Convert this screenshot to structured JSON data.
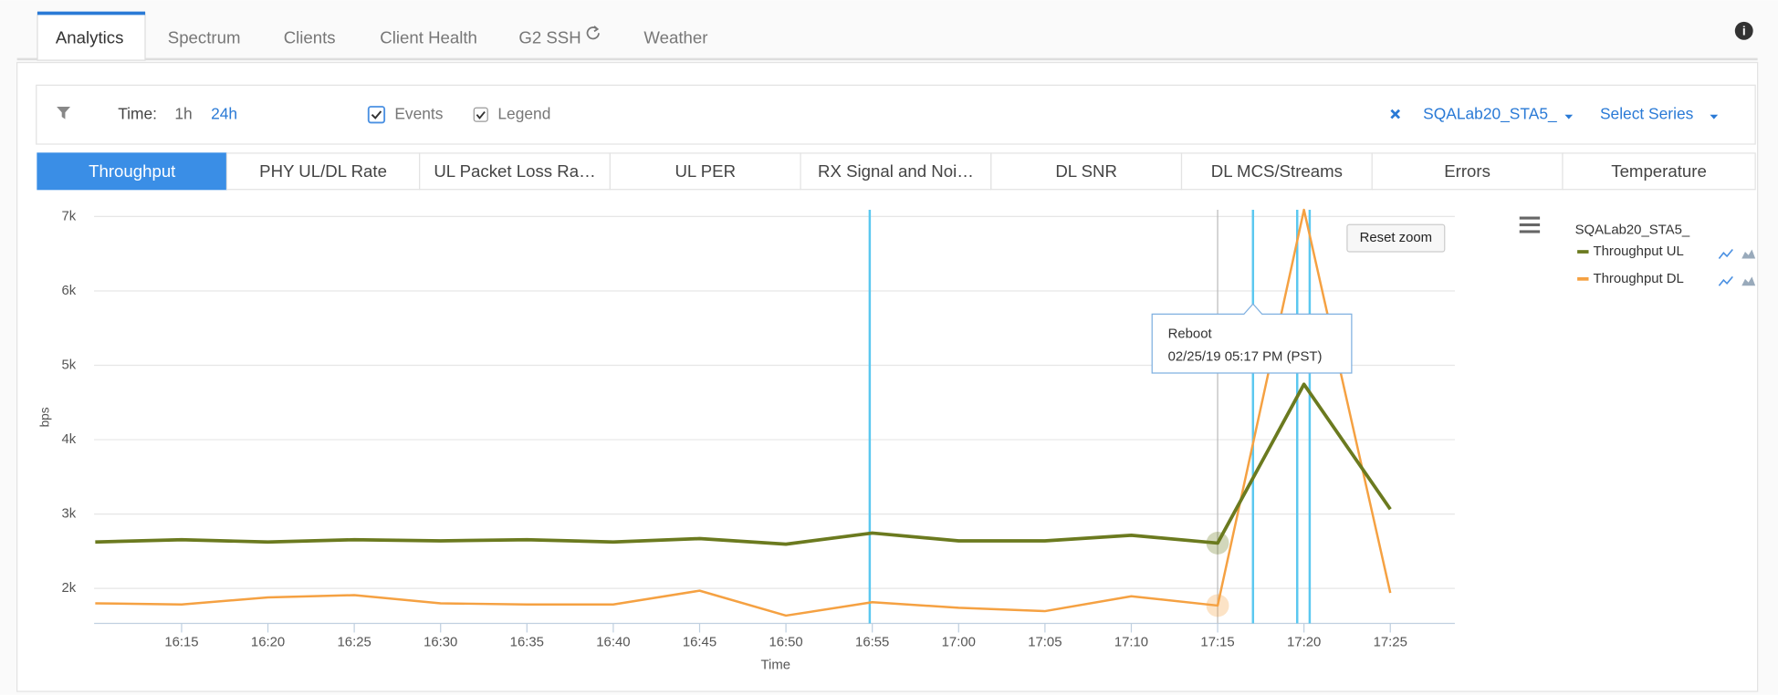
{
  "tabs": {
    "items": [
      "Analytics",
      "Spectrum",
      "Clients",
      "Client Health",
      "G2 SSH",
      "Weather"
    ],
    "active": 0
  },
  "toolbar": {
    "time_label": "Time:",
    "time_options": [
      "1h",
      "24h"
    ],
    "events": "Events",
    "legend": "Legend",
    "series_chip": "SQALab20_STA5_",
    "select_series": "Select Series"
  },
  "metric_tabs": {
    "items": [
      "Throughput",
      "PHY UL/DL Rate",
      "UL Packet Loss Ra…",
      "UL PER",
      "RX Signal and Noi…",
      "DL SNR",
      "DL MCS/Streams",
      "Errors",
      "Temperature"
    ],
    "active": 0
  },
  "chart_data": {
    "type": "line",
    "ylabel": "bps",
    "xlabel": "Time",
    "legend_title": "SQALab20_STA5_",
    "reset_zoom": "Reset zoom",
    "tooltip": {
      "title": "Reboot",
      "text": "02/25/19 05:17 PM (PST)"
    },
    "x": [
      null,
      "16:15",
      "16:20",
      "16:25",
      "16:30",
      "16:35",
      "16:40",
      "16:45",
      "16:50",
      "16:55",
      "17:00",
      "17:05",
      "17:10",
      "17:15",
      "17:20",
      "17:25"
    ],
    "series": [
      {
        "name": "Throughput UL",
        "color": "#6b7a1f",
        "values": [
          2625,
          2655,
          2625,
          2655,
          2640,
          2655,
          2625,
          2670,
          2595,
          2745,
          2640,
          2640,
          2715,
          2610,
          4745,
          3065
        ]
      },
      {
        "name": "Throughput DL",
        "color": "#f5a142",
        "values": [
          1800,
          1785,
          1880,
          1910,
          1800,
          1785,
          1785,
          1970,
          1635,
          1815,
          1740,
          1695,
          1895,
          1770,
          7090,
          1940
        ]
      }
    ],
    "ylim": [
      1530,
      7090
    ],
    "yticks": [
      {
        "value": 2000,
        "label": "2k"
      },
      {
        "value": 3000,
        "label": "3k"
      },
      {
        "value": 4000,
        "label": "4k"
      },
      {
        "value": 5000,
        "label": "5k"
      },
      {
        "value": 6000,
        "label": "6k"
      },
      {
        "value": 7000,
        "label": "7k"
      }
    ],
    "grid": true,
    "legend": "right"
  }
}
